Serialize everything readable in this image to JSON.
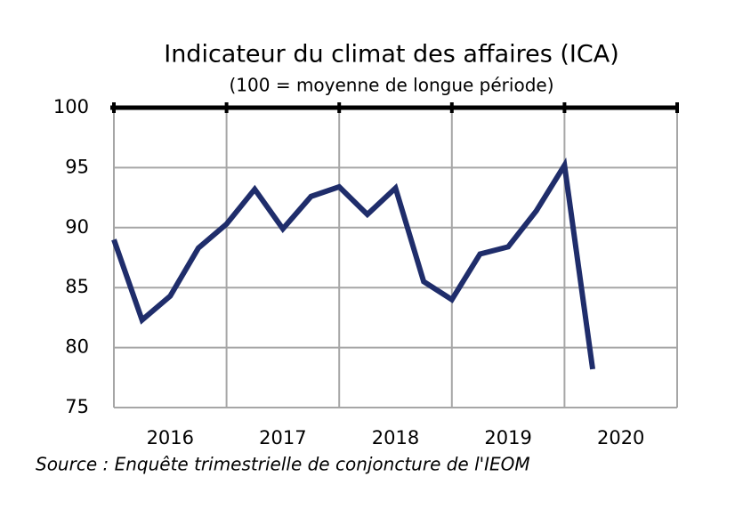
{
  "chart_data": {
    "type": "line",
    "title": "Indicateur du climat des affaires (ICA)",
    "subtitle": "(100 = moyenne de longue période)",
    "source": "Source : Enquête trimestrielle de conjoncture de l'IEOM",
    "x": [
      2016,
      2016.25,
      2016.5,
      2016.75,
      2017,
      2017.25,
      2017.5,
      2017.75,
      2018,
      2018.25,
      2018.5,
      2018.75,
      2019,
      2019.25,
      2019.5,
      2019.75,
      2020,
      2020.25
    ],
    "series": [
      {
        "name": "ICA",
        "color": "#1f2d6b",
        "values": [
          89.0,
          82.3,
          84.3,
          88.3,
          90.3,
          93.2,
          89.9,
          92.6,
          93.4,
          91.1,
          93.3,
          85.5,
          84.0,
          87.8,
          88.4,
          91.4,
          95.2,
          78.2
        ]
      }
    ],
    "xlim": [
      2016,
      2021
    ],
    "xticks": [
      2016,
      2017,
      2018,
      2019,
      2020,
      2021
    ],
    "x_labels": [
      2016,
      2017,
      2018,
      2019,
      2020
    ],
    "ylim": [
      75,
      100
    ],
    "yticks": [
      75,
      80,
      85,
      90,
      95,
      100
    ],
    "grid": true
  }
}
